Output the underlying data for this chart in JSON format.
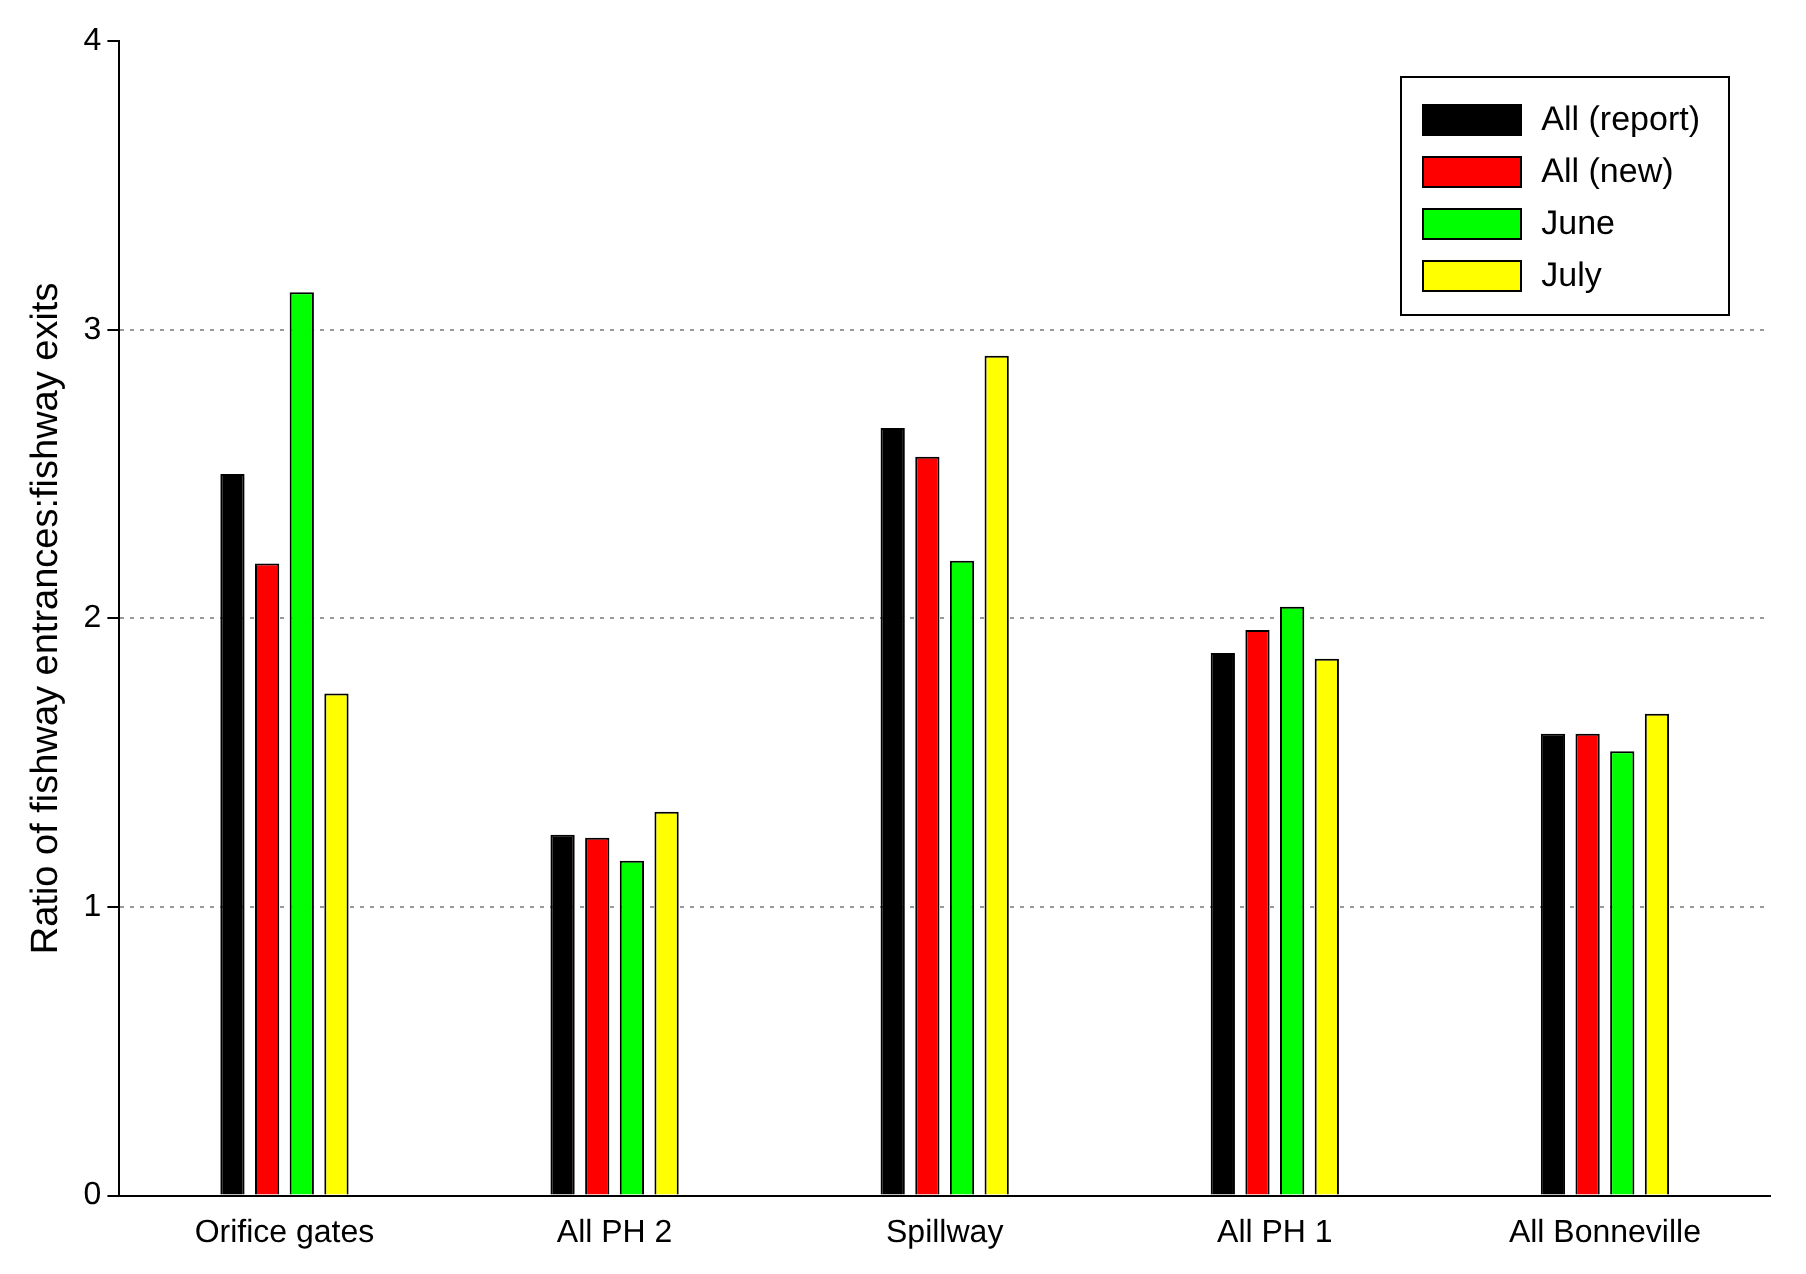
{
  "chart_data": {
    "type": "bar",
    "ylabel": "Ratio of fishway entrances:fishway exits",
    "categories": [
      "Orifice gates",
      "All PH 2",
      "Spillway",
      "All PH 1",
      "All Bonneville"
    ],
    "series": [
      {
        "name": "All (report)",
        "color": "#000000",
        "values": [
          2.5,
          1.25,
          2.66,
          1.88,
          1.6
        ]
      },
      {
        "name": "All (new)",
        "color": "#ff0000",
        "values": [
          2.19,
          1.24,
          2.56,
          1.96,
          1.6
        ]
      },
      {
        "name": "June",
        "color": "#00ff00",
        "values": [
          3.13,
          1.16,
          2.2,
          2.04,
          1.54
        ]
      },
      {
        "name": "July",
        "color": "#ffff00",
        "values": [
          1.74,
          1.33,
          2.91,
          1.86,
          1.67
        ]
      }
    ],
    "ylim": [
      0,
      4
    ],
    "yticks": [
      0,
      1,
      2,
      3,
      4
    ],
    "grid": "y",
    "legend": "top right"
  }
}
